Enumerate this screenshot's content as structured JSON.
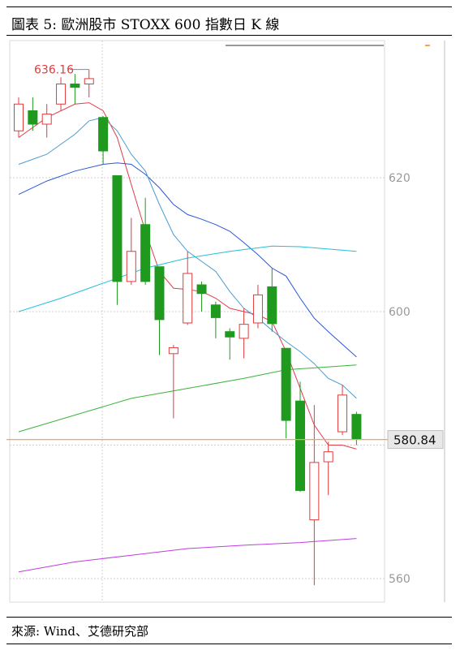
{
  "title": "圖表 5: 歐洲股市 STOXX 600 指數日 K 線",
  "source": "來源: Wind、艾德研究部",
  "chart_data": {
    "type": "candlestick",
    "ylim": [
      557,
      638
    ],
    "yticks": [
      560,
      580,
      600,
      620
    ],
    "ytick_labels": [
      "560",
      "",
      "600",
      "620"
    ],
    "annotations": {
      "high_label": "636.16",
      "last_price": "580.84",
      "last_price_value": 580.84
    },
    "colors": {
      "up": "#e03c3c",
      "down": "#1f9a1f",
      "ma5": "#e23d4b",
      "ma10": "#2b56d8",
      "ma20": "#4a9bd0",
      "ma60": "#22c0d8",
      "ma120": "#3bb33b",
      "ma250": "#c03de0",
      "price_line": "#f5a54a"
    },
    "candles": [
      {
        "o": 627,
        "c": 631,
        "h": 632,
        "l": 626
      },
      {
        "o": 630,
        "c": 628,
        "h": 632,
        "l": 627
      },
      {
        "o": 628,
        "c": 629.5,
        "h": 631,
        "l": 626
      },
      {
        "o": 631,
        "c": 634,
        "h": 635,
        "l": 630
      },
      {
        "o": 634,
        "c": 633.5,
        "h": 635.5,
        "l": 631
      },
      {
        "o": 634,
        "c": 634.8,
        "h": 636.16,
        "l": 632
      },
      {
        "o": 629,
        "c": 624,
        "h": 629.2,
        "l": 622
      },
      {
        "o": 620.3,
        "c": 604.5,
        "h": 620.3,
        "l": 601
      },
      {
        "o": 604.5,
        "c": 609,
        "h": 614,
        "l": 604
      },
      {
        "o": 613,
        "c": 604.5,
        "h": 617,
        "l": 604
      },
      {
        "o": 606.7,
        "c": 598.8,
        "h": 606.7,
        "l": 593.5
      },
      {
        "o": 593.7,
        "c": 594.6,
        "h": 595,
        "l": 584
      },
      {
        "o": 598.3,
        "c": 605.7,
        "h": 609,
        "l": 598
      },
      {
        "o": 604,
        "c": 602.7,
        "h": 604.5,
        "l": 600
      },
      {
        "o": 601,
        "c": 599.1,
        "h": 601.5,
        "l": 596
      },
      {
        "o": 597,
        "c": 596.2,
        "h": 597.5,
        "l": 592.8
      },
      {
        "o": 596,
        "c": 598.1,
        "h": 600.5,
        "l": 593
      },
      {
        "o": 598.3,
        "c": 602.5,
        "h": 604,
        "l": 597.5
      },
      {
        "o": 603.7,
        "c": 598.2,
        "h": 606.5,
        "l": 597
      },
      {
        "o": 594.5,
        "c": 583.7,
        "h": 594.5,
        "l": 581
      },
      {
        "o": 586.6,
        "c": 573.2,
        "h": 589.5,
        "l": 573
      },
      {
        "o": 568.8,
        "c": 577.4,
        "h": 586,
        "l": 559
      },
      {
        "o": 577.5,
        "c": 579,
        "h": 580.5,
        "l": 572.5
      },
      {
        "o": 582,
        "c": 587.5,
        "h": 589,
        "l": 581.5
      },
      {
        "o": 584.6,
        "c": 580.84,
        "h": 585,
        "l": 580
      }
    ],
    "ma_series": [
      {
        "key": "ma5",
        "values": [
          [
            0,
            626
          ],
          [
            2,
            629
          ],
          [
            4,
            631
          ],
          [
            5,
            631.2
          ],
          [
            6,
            630
          ],
          [
            7,
            626
          ],
          [
            8,
            619
          ],
          [
            9,
            612
          ],
          [
            10,
            606
          ],
          [
            11,
            603.5
          ],
          [
            12,
            603.3
          ],
          [
            13,
            603
          ],
          [
            14,
            602
          ],
          [
            15,
            600.5
          ],
          [
            16,
            600
          ],
          [
            17,
            599.5
          ],
          [
            18,
            598.5
          ],
          [
            19,
            594
          ],
          [
            20,
            588.5
          ],
          [
            21,
            583
          ],
          [
            22,
            580
          ],
          [
            23,
            580
          ],
          [
            24,
            579.4
          ]
        ]
      },
      {
        "key": "ma10",
        "values": [
          [
            0,
            617.5
          ],
          [
            2,
            619.5
          ],
          [
            4,
            621
          ],
          [
            6,
            622
          ],
          [
            7,
            622.2
          ],
          [
            8,
            622
          ],
          [
            9,
            620.5
          ],
          [
            10,
            618.5
          ],
          [
            11,
            616
          ],
          [
            12,
            614.5
          ],
          [
            13,
            613.8
          ],
          [
            14,
            613
          ],
          [
            15,
            612
          ],
          [
            16,
            610.3
          ],
          [
            17,
            608.5
          ],
          [
            18,
            606.5
          ],
          [
            19,
            605.3
          ],
          [
            20,
            602
          ],
          [
            21,
            599
          ],
          [
            22,
            597
          ],
          [
            24,
            593.2
          ]
        ]
      },
      {
        "key": "ma20",
        "values": [
          [
            0,
            622
          ],
          [
            2,
            623.5
          ],
          [
            4,
            626.5
          ],
          [
            5,
            628.5
          ],
          [
            6,
            629
          ],
          [
            7,
            627
          ],
          [
            8,
            623.5
          ],
          [
            9,
            621
          ],
          [
            10,
            616
          ],
          [
            11,
            611.5
          ],
          [
            12,
            609
          ],
          [
            13,
            607.5
          ],
          [
            14,
            606
          ],
          [
            15,
            603
          ],
          [
            16,
            600.5
          ],
          [
            17,
            599
          ],
          [
            18,
            597.2
          ],
          [
            19,
            595.5
          ],
          [
            20,
            594
          ],
          [
            21,
            592.2
          ],
          [
            22,
            590
          ],
          [
            23,
            589
          ],
          [
            24,
            587
          ]
        ]
      },
      {
        "key": "ma60",
        "values": [
          [
            0,
            600
          ],
          [
            3,
            602
          ],
          [
            5,
            603.5
          ],
          [
            7,
            605
          ],
          [
            9,
            606.5
          ],
          [
            12,
            608
          ],
          [
            15,
            609
          ],
          [
            18,
            609.8
          ],
          [
            20,
            609.7
          ],
          [
            24,
            609
          ]
        ]
      },
      {
        "key": "ma120",
        "values": [
          [
            0,
            582
          ],
          [
            4,
            584.5
          ],
          [
            8,
            587
          ],
          [
            12,
            588.5
          ],
          [
            16,
            590
          ],
          [
            19,
            591.3
          ],
          [
            24,
            592
          ]
        ]
      },
      {
        "key": "ma250",
        "values": [
          [
            0,
            561
          ],
          [
            4,
            562.5
          ],
          [
            8,
            563.5
          ],
          [
            12,
            564.5
          ],
          [
            16,
            565
          ],
          [
            20,
            565.4
          ],
          [
            24,
            566
          ]
        ]
      }
    ]
  }
}
